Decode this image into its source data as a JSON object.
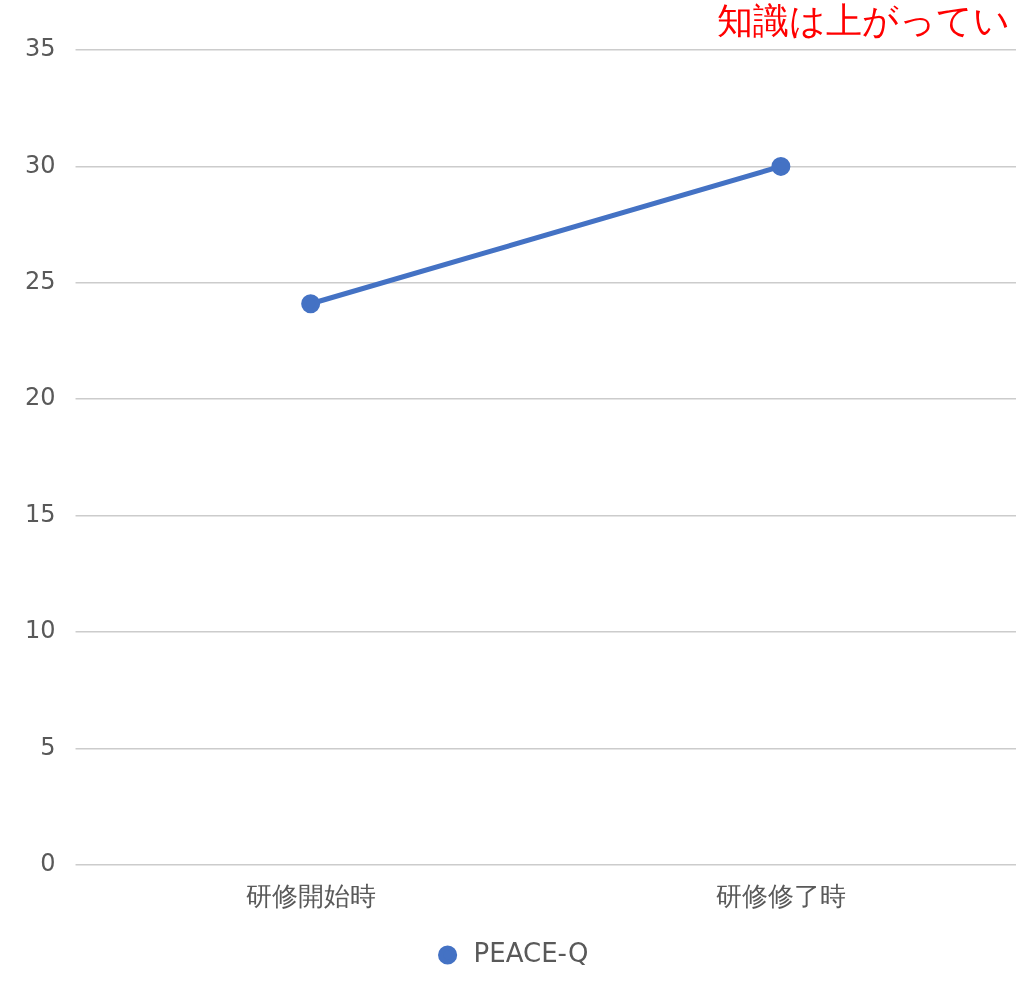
{
  "chart_data": {
    "type": "line",
    "categories": [
      "研修開始時",
      "研修修了時"
    ],
    "series": [
      {
        "name": "PEACE-Q",
        "color": "#4472c4",
        "values": [
          24.1,
          30
        ]
      }
    ],
    "ylim": [
      0,
      35
    ],
    "yticks": [
      0,
      5,
      10,
      15,
      20,
      25,
      30,
      35
    ],
    "grid": "y",
    "legend": "bottom",
    "marker": "circle",
    "line_style": "solid",
    "annotations": [
      "知識は上がってい"
    ]
  }
}
